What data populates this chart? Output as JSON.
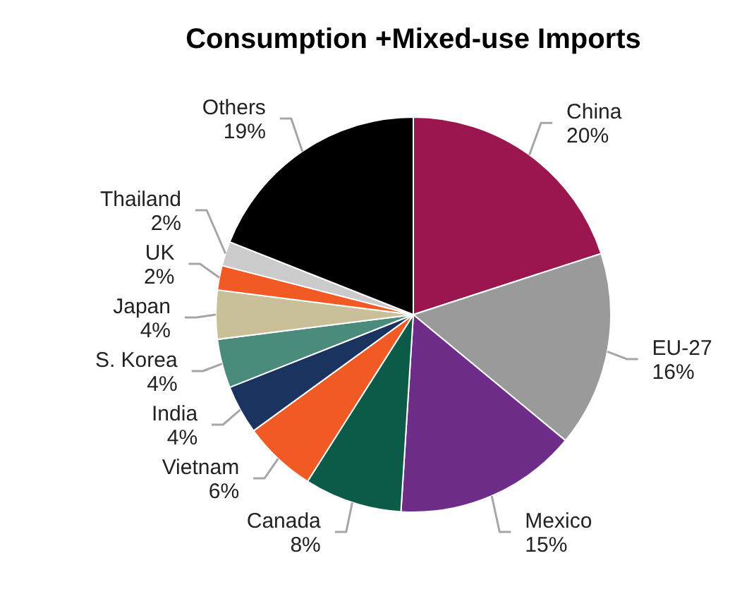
{
  "chart_data": {
    "type": "pie",
    "title": "Consumption +Mixed-use Imports",
    "categories": [
      "China",
      "EU-27",
      "Mexico",
      "Canada",
      "Vietnam",
      "India",
      "S. Korea",
      "Japan",
      "UK",
      "Thailand",
      "Others"
    ],
    "values": [
      20,
      16,
      15,
      8,
      6,
      4,
      4,
      4,
      2,
      2,
      19
    ],
    "value_labels": [
      "20%",
      "16%",
      "15%",
      "8%",
      "6%",
      "4%",
      "4%",
      "4%",
      "2%",
      "2%",
      "19%"
    ],
    "colors": [
      "#9b164f",
      "#9a9a9a",
      "#6e2d89",
      "#0c5a48",
      "#f15a24",
      "#1b335f",
      "#4b8b7b",
      "#c9c09a",
      "#f15a24",
      "#cbcbcb",
      "#000000"
    ]
  }
}
